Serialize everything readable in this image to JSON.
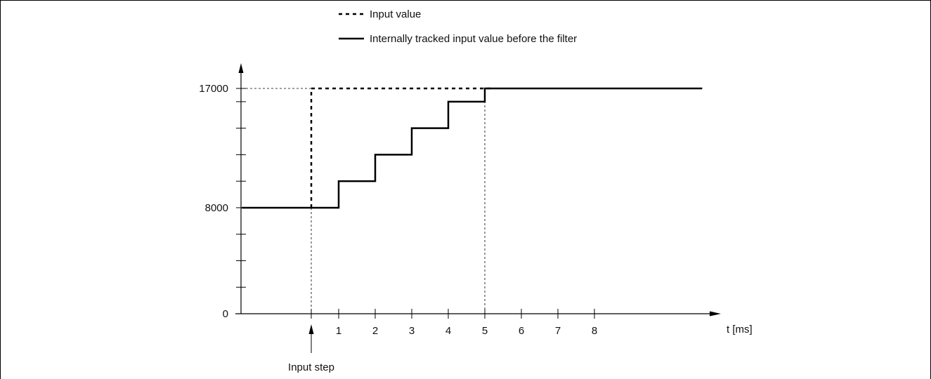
{
  "chart_data": {
    "type": "line",
    "xlabel": "t [ms]",
    "x_ticks": [
      1,
      2,
      3,
      4,
      5,
      6,
      7,
      8
    ],
    "y_tick_labels": [
      "0",
      "8000",
      "17000"
    ],
    "y_ticks_labeled": [
      0,
      8000,
      17000
    ],
    "y_ticks_unlabeled": [
      2000,
      4000,
      6000,
      10000,
      12000,
      14000,
      16000
    ],
    "xlim": [
      -1.9,
      10
    ],
    "ylim": [
      0,
      17000
    ],
    "grid": false,
    "legend_position": "top",
    "annotation": {
      "text": "Input step",
      "x": 0
    },
    "guide_lines": [
      0,
      5
    ],
    "series": [
      {
        "name": "Input value",
        "style": "dashed",
        "points": [
          [
            0,
            8000
          ],
          [
            0,
            17000
          ],
          [
            5,
            17000
          ]
        ]
      },
      {
        "name": "Internally tracked input value before the filter",
        "style": "solid",
        "points": [
          [
            -1.9,
            8000
          ],
          [
            0.75,
            8000
          ],
          [
            0.75,
            10000
          ],
          [
            1.75,
            10000
          ],
          [
            1.75,
            12000
          ],
          [
            2.75,
            12000
          ],
          [
            2.75,
            14000
          ],
          [
            3.75,
            14000
          ],
          [
            3.75,
            16000
          ],
          [
            4.75,
            16000
          ],
          [
            4.75,
            17000
          ],
          [
            10.7,
            17000
          ]
        ]
      }
    ]
  }
}
